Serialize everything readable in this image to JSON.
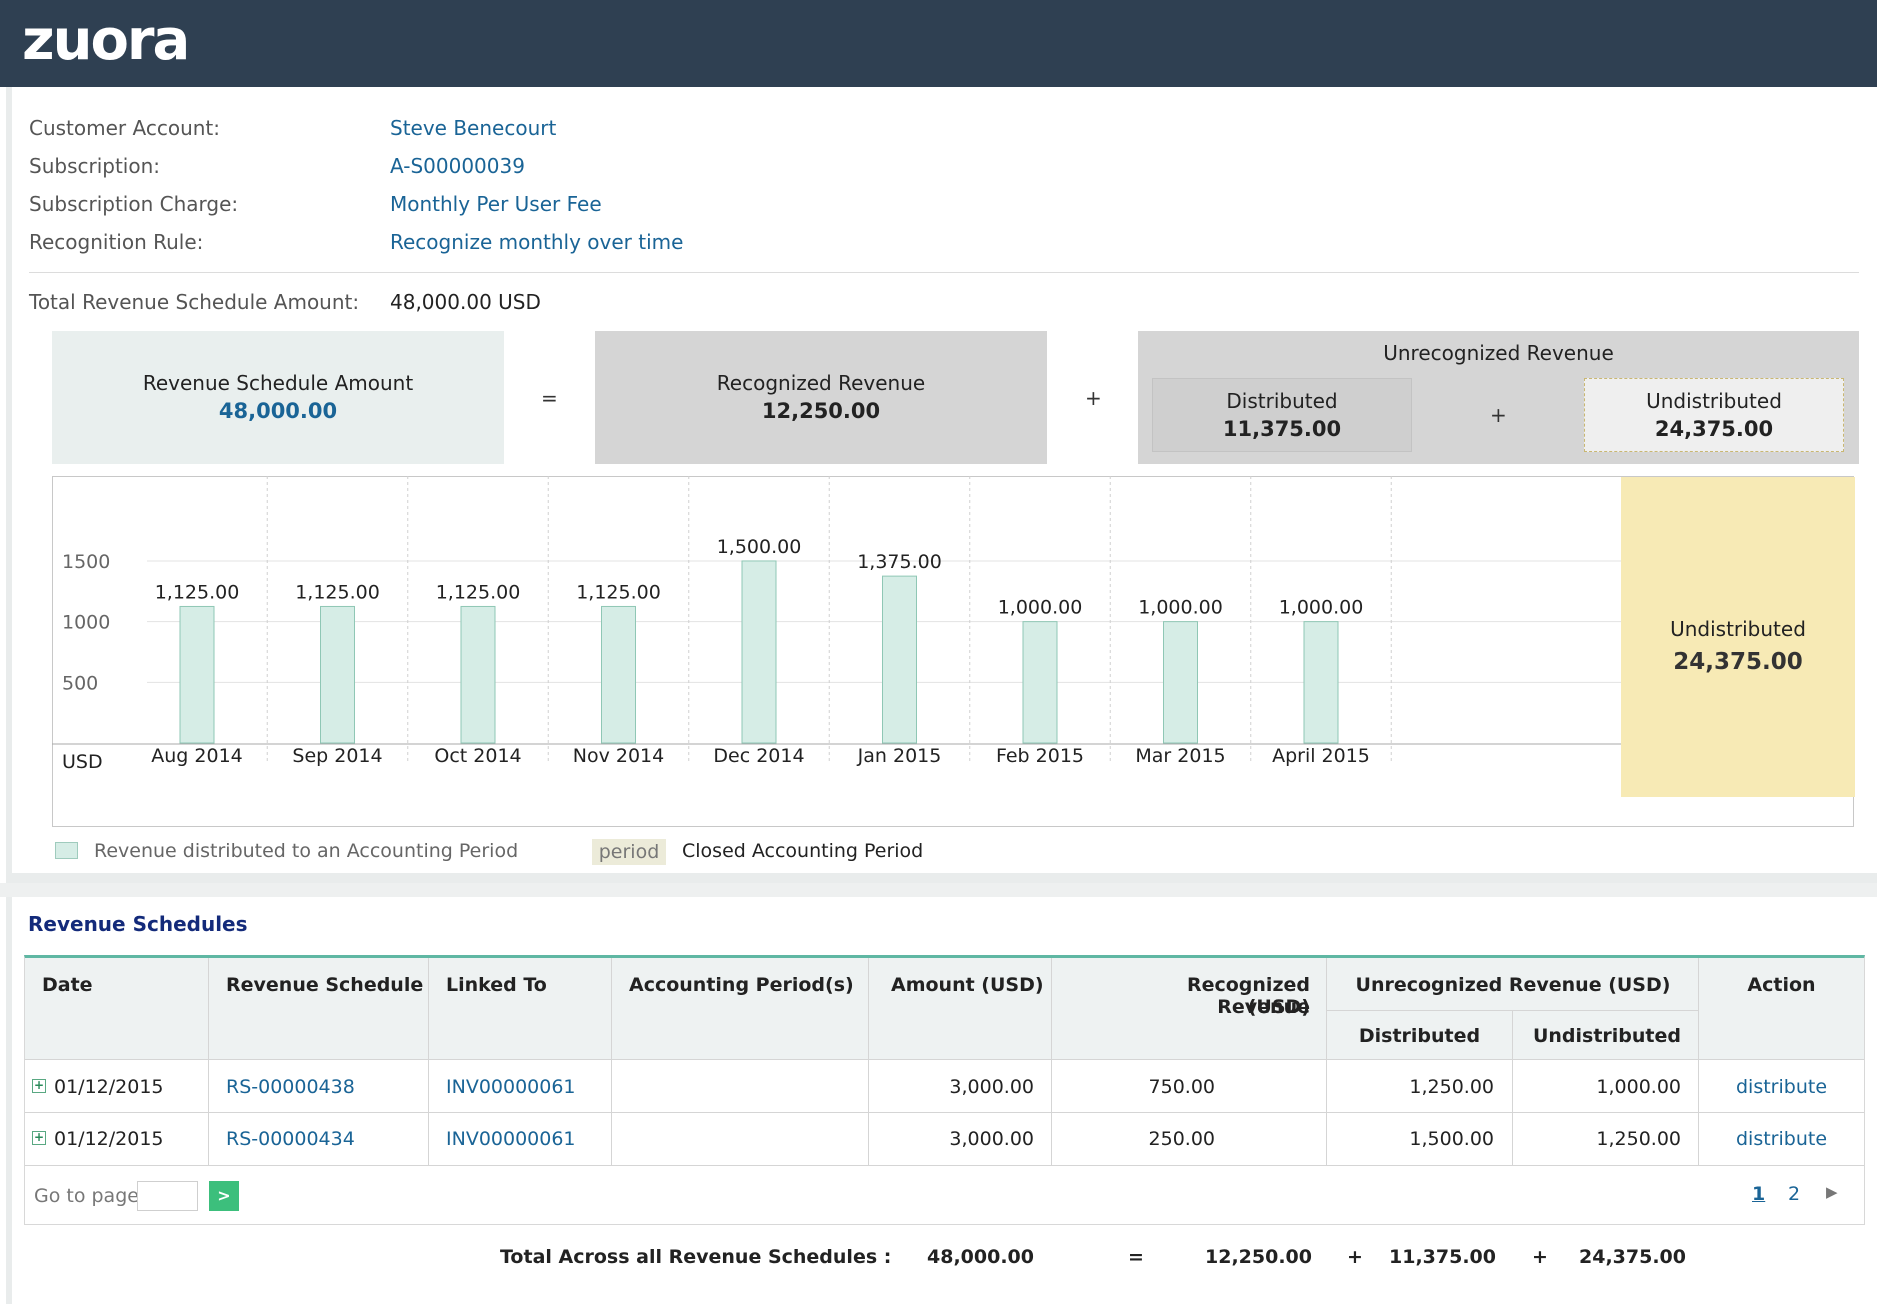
{
  "app": {
    "logo": "zuora"
  },
  "info": {
    "customer_account_label": "Customer Account:",
    "customer_account_value": "Steve Benecourt",
    "subscription_label": "Subscription:",
    "subscription_value": "A-S00000039",
    "charge_label": "Subscription Charge:",
    "charge_value": "Monthly Per User Fee",
    "rule_label": "Recognition Rule:",
    "rule_value": "Recognize monthly over time",
    "total_label": "Total Revenue Schedule Amount:",
    "total_value": "48,000.00 USD"
  },
  "summary": {
    "rsa_label": "Revenue Schedule Amount",
    "rsa_value": "48,000.00",
    "eq": "=",
    "recognized_label": "Recognized Revenue",
    "recognized_value": "12,250.00",
    "plus": "+",
    "unrecognized_label": "Unrecognized Revenue",
    "distributed_label": "Distributed",
    "distributed_value": "11,375.00",
    "undistributed_label": "Undistributed",
    "undistributed_value": "24,375.00"
  },
  "chart_data": {
    "type": "bar",
    "categories": [
      "Aug 2014",
      "Sep 2014",
      "Oct 2014",
      "Nov 2014",
      "Dec 2014",
      "Jan 2015",
      "Feb 2015",
      "Mar 2015",
      "April 2015"
    ],
    "values": [
      1125,
      1125,
      1125,
      1125,
      1500,
      1375,
      1000,
      1000,
      1000
    ],
    "value_labels": [
      "1,125.00",
      "1,125.00",
      "1,125.00",
      "1,125.00",
      "1,500.00",
      "1,375.00",
      "1,000.00",
      "1,000.00",
      "1,000.00"
    ],
    "y_ticks": [
      500,
      1000,
      1500
    ],
    "y_tick_labels": [
      "500",
      "1000",
      "1500"
    ],
    "ylim": [
      0,
      2200
    ],
    "unit_label": "USD",
    "grid": true,
    "bar_color": "#d6ede6",
    "bar_border": "#8fc7b5",
    "undistributed_label": "Undistributed",
    "undistributed_value": "24,375.00"
  },
  "legend": {
    "distributed_label": "Revenue distributed to an Accounting Period",
    "period_tag": "period",
    "closed_label": "Closed Accounting Period"
  },
  "schedules": {
    "title": "Revenue Schedules",
    "headers": {
      "date": "Date",
      "schedule": "Revenue Schedule",
      "linked": "Linked To",
      "periods": "Accounting Period(s)",
      "amount": "Amount (USD)",
      "recognized_1": "Recognized Revenue",
      "recognized_2": "(USD)",
      "unrecognized": "Unrecognized Revenue (USD)",
      "distributed": "Distributed",
      "undistributed": "Undistributed",
      "action": "Action"
    },
    "rows": [
      {
        "date": "01/12/2015",
        "schedule": "RS-00000438",
        "linked": "INV00000061",
        "periods": "",
        "amount": "3,000.00",
        "recognized": "750.00",
        "distributed": "1,250.00",
        "undistributed": "1,000.00",
        "action": "distribute"
      },
      {
        "date": "01/12/2015",
        "schedule": "RS-00000434",
        "linked": "INV00000061",
        "periods": "",
        "amount": "3,000.00",
        "recognized": "250.00",
        "distributed": "1,500.00",
        "undistributed": "1,250.00",
        "action": "distribute"
      }
    ],
    "pagination": {
      "goto_label": "Go to page",
      "goto_button": ">",
      "pages": [
        "1",
        "2"
      ],
      "next": "▶"
    },
    "totals": {
      "label": "Total Across all Revenue Schedules :",
      "amount": "48,000.00",
      "eq": "=",
      "recognized": "12,250.00",
      "plus": "+",
      "distributed": "11,375.00",
      "undistributed": "24,375.00"
    }
  }
}
